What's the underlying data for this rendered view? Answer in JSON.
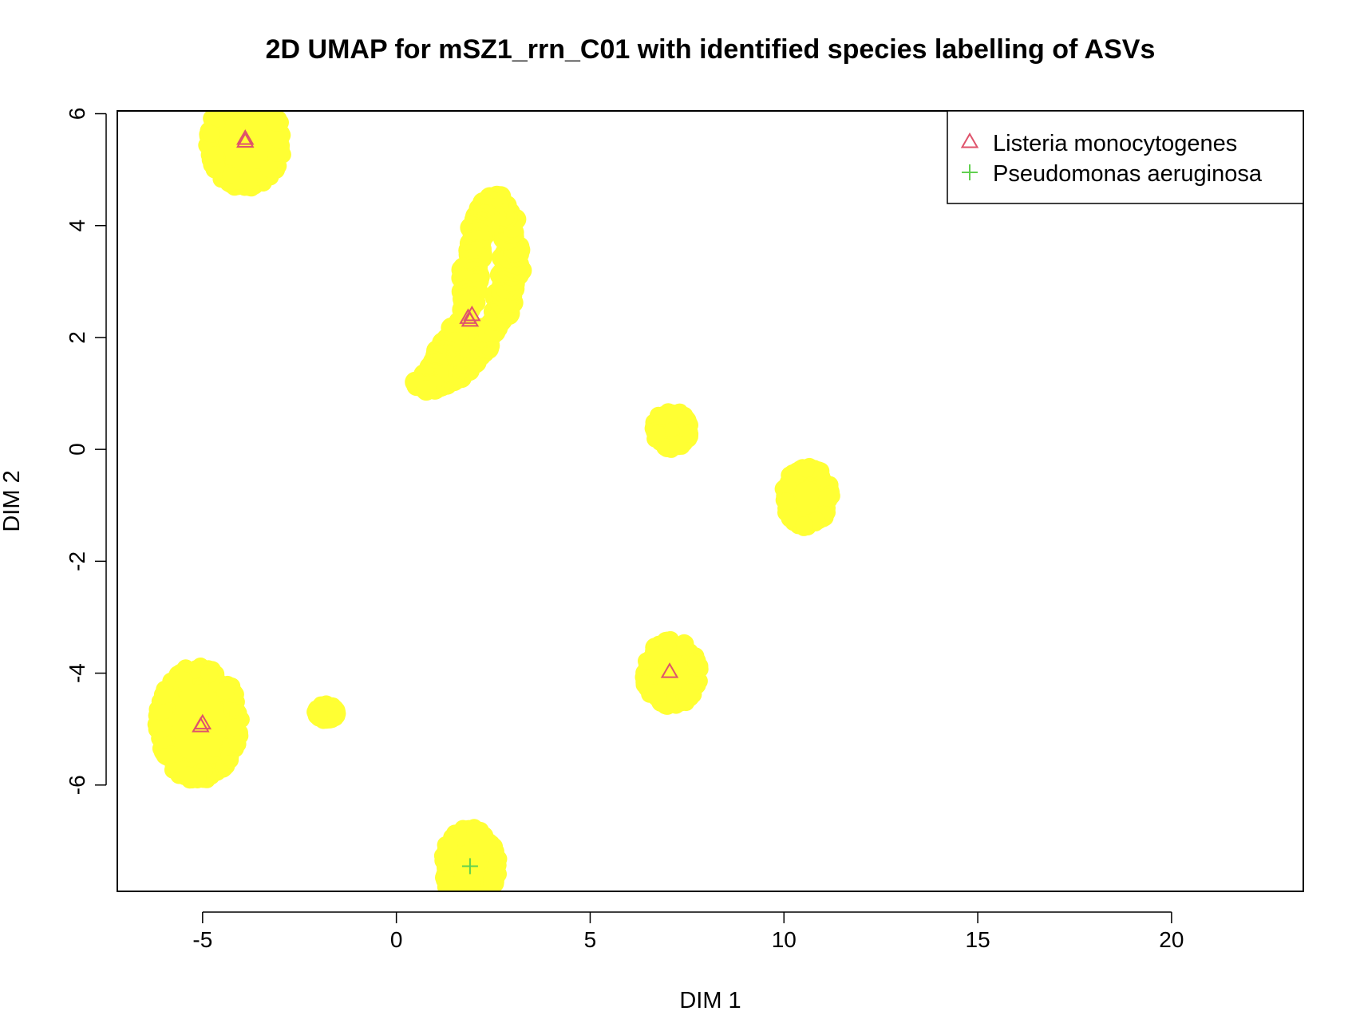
{
  "chart_data": {
    "type": "scatter",
    "title": "2D UMAP for  mSZ1_rrn_C01  with identified species labelling of ASVs",
    "xlabel": "DIM 1",
    "ylabel": "DIM 2",
    "xlim": [
      -7.2,
      23.4
    ],
    "ylim": [
      -7.9,
      6.05
    ],
    "x_ticks": [
      -5,
      0,
      5,
      10,
      15,
      20
    ],
    "y_ticks": [
      -6,
      -4,
      -2,
      0,
      2,
      4,
      6
    ],
    "grid": false,
    "legend_position": "top-right",
    "background_color": "#ffff33",
    "background_clusters": [
      {
        "center": [
          -3.9,
          5.5
        ],
        "radius": [
          1.0,
          0.85
        ]
      },
      {
        "center": [
          -5.1,
          -4.9
        ],
        "radius": [
          1.1,
          1.05
        ]
      },
      {
        "center": [
          -1.8,
          -4.7
        ],
        "radius": [
          0.3,
          0.15
        ]
      },
      {
        "center": [
          1.9,
          -7.45
        ],
        "radius": [
          0.75,
          0.7
        ]
      },
      {
        "center": [
          7.1,
          0.35
        ],
        "radius": [
          0.5,
          0.35
        ]
      },
      {
        "center": [
          10.6,
          -0.85
        ],
        "radius": [
          0.65,
          0.55
        ]
      },
      {
        "center": [
          7.1,
          -4.0
        ],
        "radius": [
          0.75,
          0.6
        ]
      }
    ],
    "background_arc": {
      "points": [
        [
          1.0,
          1.2
        ],
        [
          1.6,
          1.4
        ],
        [
          2.2,
          1.9
        ],
        [
          2.8,
          2.6
        ],
        [
          3.0,
          3.3
        ],
        [
          2.9,
          4.0
        ],
        [
          2.5,
          4.4
        ],
        [
          2.1,
          3.9
        ],
        [
          1.9,
          3.1
        ],
        [
          1.8,
          2.3
        ],
        [
          1.2,
          1.6
        ],
        [
          0.7,
          1.1
        ]
      ],
      "radius": 0.45
    },
    "series": [
      {
        "name": "Listeria monocytogenes",
        "marker": "triangle",
        "color": "#df536b",
        "points": [
          [
            -3.9,
            5.55
          ],
          [
            -3.9,
            5.5
          ],
          [
            -5.05,
            -4.95
          ],
          [
            -5.0,
            -4.9
          ],
          [
            1.85,
            2.35
          ],
          [
            1.95,
            2.4
          ],
          [
            1.9,
            2.3
          ],
          [
            7.05,
            -3.98
          ]
        ]
      },
      {
        "name": "Pseudomonas aeruginosa",
        "marker": "plus",
        "color": "#61d04f",
        "points": [
          [
            1.9,
            -7.45
          ]
        ]
      }
    ]
  }
}
